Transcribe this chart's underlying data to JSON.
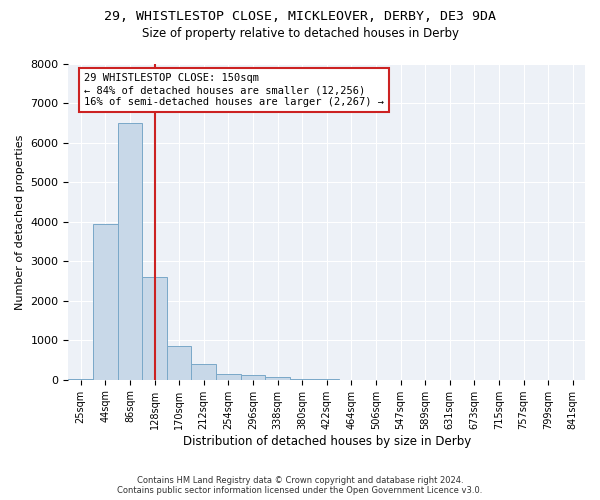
{
  "title_line1": "29, WHISTLESTOP CLOSE, MICKLEOVER, DERBY, DE3 9DA",
  "title_line2": "Size of property relative to detached houses in Derby",
  "xlabel": "Distribution of detached houses by size in Derby",
  "ylabel": "Number of detached properties",
  "bar_color": "#c8d8e8",
  "bar_edge_color": "#7aa8c8",
  "vline_color": "#cc2222",
  "vline_x": 3.0,
  "categories": [
    "25sqm",
    "44sqm",
    "86sqm",
    "128sqm",
    "170sqm",
    "212sqm",
    "254sqm",
    "296sqm",
    "338sqm",
    "380sqm",
    "422sqm",
    "464sqm",
    "506sqm",
    "547sqm",
    "589sqm",
    "631sqm",
    "673sqm",
    "715sqm",
    "757sqm",
    "799sqm",
    "841sqm"
  ],
  "values": [
    30,
    3950,
    6500,
    2600,
    850,
    400,
    150,
    110,
    65,
    20,
    15,
    0,
    0,
    0,
    0,
    0,
    0,
    0,
    0,
    0,
    0
  ],
  "ylim": [
    0,
    8000
  ],
  "yticks": [
    0,
    1000,
    2000,
    3000,
    4000,
    5000,
    6000,
    7000,
    8000
  ],
  "annotation_text": "29 WHISTLESTOP CLOSE: 150sqm\n← 84% of detached houses are smaller (12,256)\n16% of semi-detached houses are larger (2,267) →",
  "background_color": "#edf1f7",
  "grid_color": "#ffffff",
  "footer_line1": "Contains HM Land Registry data © Crown copyright and database right 2024.",
  "footer_line2": "Contains public sector information licensed under the Open Government Licence v3.0."
}
